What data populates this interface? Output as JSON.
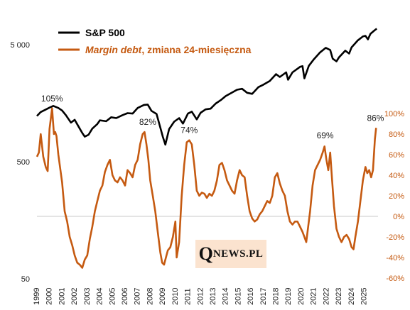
{
  "chart_data": {
    "type": "line",
    "title": "",
    "legend_placement": "top-left",
    "colors": {
      "sp500": "#000000",
      "margin": "#c55a11"
    },
    "legend": {
      "sp500": "S&P 500",
      "margin_italic": "Margin debt",
      "margin_rest": ", zmiana 24-miesięczna"
    },
    "left_axis": {
      "scale": "log",
      "ylim": [
        50,
        10000
      ],
      "tick_values": [
        50,
        500,
        5000
      ],
      "tick_labels": [
        "50",
        "500",
        "5 000"
      ]
    },
    "right_axis": {
      "scale": "linear",
      "ylim": [
        -60,
        100
      ],
      "tick_values": [
        100,
        80,
        60,
        40,
        20,
        0,
        -20,
        -40,
        -60
      ],
      "tick_labels": [
        "100%",
        "80%",
        "60%",
        "40%",
        "20%",
        "0%",
        "-20%",
        "-40%",
        "-60%"
      ]
    },
    "x_axis": {
      "xlim": [
        1999.0,
        2026.1
      ],
      "tick_labels": [
        "1999",
        "2000",
        "2001",
        "2002",
        "2003",
        "2004",
        "2005",
        "2006",
        "2007",
        "2008",
        "2009",
        "2010",
        "2011",
        "2012",
        "2013",
        "2014",
        "2015",
        "2016",
        "2017",
        "2018",
        "2019",
        "2020",
        "2021",
        "2022",
        "2023",
        "2024",
        "2025"
      ]
    },
    "annotations": [
      {
        "text": "105%",
        "x": 2000.2
      },
      {
        "text": "82%",
        "x": 2007.8
      },
      {
        "text": "74%",
        "x": 2011.1
      },
      {
        "text": "69%",
        "x": 2021.9
      },
      {
        "text": "86%",
        "x": 2025.9
      }
    ],
    "series": [
      {
        "name": "S&P 500",
        "axis": "left",
        "points": [
          [
            1999.0,
            1230
          ],
          [
            1999.3,
            1330
          ],
          [
            1999.6,
            1380
          ],
          [
            2000.0,
            1450
          ],
          [
            2000.3,
            1500
          ],
          [
            2000.7,
            1440
          ],
          [
            2001.0,
            1370
          ],
          [
            2001.3,
            1250
          ],
          [
            2001.7,
            1080
          ],
          [
            2002.0,
            1140
          ],
          [
            2002.3,
            1000
          ],
          [
            2002.6,
            880
          ],
          [
            2002.8,
            820
          ],
          [
            2003.1,
            850
          ],
          [
            2003.4,
            960
          ],
          [
            2003.8,
            1050
          ],
          [
            2004.0,
            1130
          ],
          [
            2004.5,
            1110
          ],
          [
            2004.9,
            1200
          ],
          [
            2005.3,
            1180
          ],
          [
            2005.8,
            1250
          ],
          [
            2006.2,
            1300
          ],
          [
            2006.6,
            1290
          ],
          [
            2007.0,
            1440
          ],
          [
            2007.5,
            1530
          ],
          [
            2007.8,
            1540
          ],
          [
            2008.1,
            1360
          ],
          [
            2008.5,
            1280
          ],
          [
            2008.8,
            980
          ],
          [
            2009.0,
            820
          ],
          [
            2009.2,
            700
          ],
          [
            2009.5,
            950
          ],
          [
            2009.9,
            1100
          ],
          [
            2010.3,
            1180
          ],
          [
            2010.6,
            1060
          ],
          [
            2011.0,
            1290
          ],
          [
            2011.3,
            1340
          ],
          [
            2011.7,
            1150
          ],
          [
            2012.0,
            1310
          ],
          [
            2012.4,
            1400
          ],
          [
            2012.8,
            1420
          ],
          [
            2013.2,
            1570
          ],
          [
            2013.6,
            1680
          ],
          [
            2014.0,
            1820
          ],
          [
            2014.5,
            1950
          ],
          [
            2014.9,
            2060
          ],
          [
            2015.3,
            2100
          ],
          [
            2015.7,
            1940
          ],
          [
            2016.1,
            1900
          ],
          [
            2016.6,
            2170
          ],
          [
            2017.0,
            2280
          ],
          [
            2017.5,
            2450
          ],
          [
            2018.0,
            2800
          ],
          [
            2018.3,
            2650
          ],
          [
            2018.8,
            2900
          ],
          [
            2018.95,
            2510
          ],
          [
            2019.3,
            2900
          ],
          [
            2019.9,
            3230
          ],
          [
            2020.1,
            3280
          ],
          [
            2020.25,
            2580
          ],
          [
            2020.6,
            3300
          ],
          [
            2021.0,
            3750
          ],
          [
            2021.5,
            4300
          ],
          [
            2021.95,
            4700
          ],
          [
            2022.3,
            4500
          ],
          [
            2022.5,
            3800
          ],
          [
            2022.8,
            3600
          ],
          [
            2023.0,
            3900
          ],
          [
            2023.5,
            4450
          ],
          [
            2023.8,
            4200
          ],
          [
            2024.0,
            4750
          ],
          [
            2024.5,
            5450
          ],
          [
            2024.9,
            5880
          ],
          [
            2025.1,
            5950
          ],
          [
            2025.3,
            5550
          ],
          [
            2025.5,
            6200
          ],
          [
            2025.8,
            6600
          ],
          [
            2026.0,
            6850
          ]
        ]
      },
      {
        "name": "Margin debt, zmiana 24-miesięczna",
        "axis": "right",
        "points": [
          [
            1999.0,
            58
          ],
          [
            1999.15,
            62
          ],
          [
            1999.3,
            80
          ],
          [
            1999.5,
            58
          ],
          [
            1999.7,
            48
          ],
          [
            1999.85,
            44
          ],
          [
            2000.0,
            85
          ],
          [
            2000.2,
            105
          ],
          [
            2000.35,
            80
          ],
          [
            2000.45,
            82
          ],
          [
            2000.55,
            78
          ],
          [
            2000.7,
            60
          ],
          [
            2001.0,
            33
          ],
          [
            2001.2,
            5
          ],
          [
            2001.4,
            -5
          ],
          [
            2001.6,
            -20
          ],
          [
            2001.8,
            -28
          ],
          [
            2002.0,
            -38
          ],
          [
            2002.2,
            -45
          ],
          [
            2002.4,
            -47
          ],
          [
            2002.6,
            -50
          ],
          [
            2002.8,
            -42
          ],
          [
            2003.0,
            -38
          ],
          [
            2003.2,
            -22
          ],
          [
            2003.4,
            -10
          ],
          [
            2003.6,
            5
          ],
          [
            2003.8,
            15
          ],
          [
            2004.0,
            25
          ],
          [
            2004.2,
            30
          ],
          [
            2004.4,
            43
          ],
          [
            2004.6,
            50
          ],
          [
            2004.8,
            55
          ],
          [
            2005.0,
            40
          ],
          [
            2005.2,
            35
          ],
          [
            2005.4,
            33
          ],
          [
            2005.6,
            38
          ],
          [
            2005.8,
            35
          ],
          [
            2006.0,
            30
          ],
          [
            2006.2,
            45
          ],
          [
            2006.4,
            42
          ],
          [
            2006.6,
            38
          ],
          [
            2006.8,
            50
          ],
          [
            2007.0,
            55
          ],
          [
            2007.2,
            70
          ],
          [
            2007.4,
            80
          ],
          [
            2007.55,
            82
          ],
          [
            2007.7,
            70
          ],
          [
            2007.85,
            55
          ],
          [
            2008.0,
            35
          ],
          [
            2008.2,
            20
          ],
          [
            2008.4,
            5
          ],
          [
            2008.6,
            -15
          ],
          [
            2008.8,
            -35
          ],
          [
            2008.95,
            -45
          ],
          [
            2009.1,
            -47
          ],
          [
            2009.25,
            -40
          ],
          [
            2009.4,
            -33
          ],
          [
            2009.6,
            -30
          ],
          [
            2009.8,
            -20
          ],
          [
            2010.0,
            -5
          ],
          [
            2010.1,
            -40
          ],
          [
            2010.3,
            -25
          ],
          [
            2010.5,
            20
          ],
          [
            2010.7,
            50
          ],
          [
            2010.9,
            72
          ],
          [
            2011.1,
            74
          ],
          [
            2011.3,
            70
          ],
          [
            2011.5,
            50
          ],
          [
            2011.7,
            25
          ],
          [
            2011.9,
            20
          ],
          [
            2012.1,
            23
          ],
          [
            2012.3,
            22
          ],
          [
            2012.5,
            18
          ],
          [
            2012.7,
            22
          ],
          [
            2012.9,
            20
          ],
          [
            2013.1,
            25
          ],
          [
            2013.3,
            35
          ],
          [
            2013.5,
            50
          ],
          [
            2013.7,
            52
          ],
          [
            2013.9,
            45
          ],
          [
            2014.1,
            35
          ],
          [
            2014.3,
            30
          ],
          [
            2014.5,
            25
          ],
          [
            2014.7,
            22
          ],
          [
            2014.9,
            35
          ],
          [
            2015.1,
            45
          ],
          [
            2015.3,
            40
          ],
          [
            2015.5,
            38
          ],
          [
            2015.7,
            20
          ],
          [
            2015.9,
            5
          ],
          [
            2016.1,
            -2
          ],
          [
            2016.3,
            -5
          ],
          [
            2016.5,
            -3
          ],
          [
            2016.7,
            2
          ],
          [
            2016.9,
            5
          ],
          [
            2017.1,
            10
          ],
          [
            2017.3,
            15
          ],
          [
            2017.5,
            13
          ],
          [
            2017.7,
            20
          ],
          [
            2017.9,
            38
          ],
          [
            2018.1,
            42
          ],
          [
            2018.3,
            32
          ],
          [
            2018.5,
            25
          ],
          [
            2018.7,
            20
          ],
          [
            2018.9,
            5
          ],
          [
            2019.1,
            -5
          ],
          [
            2019.3,
            -8
          ],
          [
            2019.5,
            -5
          ],
          [
            2019.7,
            -5
          ],
          [
            2019.9,
            -10
          ],
          [
            2020.1,
            -15
          ],
          [
            2020.25,
            -20
          ],
          [
            2020.4,
            -25
          ],
          [
            2020.55,
            -10
          ],
          [
            2020.7,
            5
          ],
          [
            2020.9,
            30
          ],
          [
            2021.1,
            45
          ],
          [
            2021.3,
            50
          ],
          [
            2021.5,
            55
          ],
          [
            2021.7,
            62
          ],
          [
            2021.85,
            68
          ],
          [
            2022.0,
            55
          ],
          [
            2022.15,
            45
          ],
          [
            2022.3,
            62
          ],
          [
            2022.45,
            35
          ],
          [
            2022.6,
            10
          ],
          [
            2022.8,
            -12
          ],
          [
            2023.0,
            -20
          ],
          [
            2023.2,
            -25
          ],
          [
            2023.4,
            -20
          ],
          [
            2023.6,
            -18
          ],
          [
            2023.8,
            -22
          ],
          [
            2024.0,
            -30
          ],
          [
            2024.15,
            -32
          ],
          [
            2024.3,
            -20
          ],
          [
            2024.5,
            -5
          ],
          [
            2024.7,
            15
          ],
          [
            2024.9,
            35
          ],
          [
            2025.1,
            48
          ],
          [
            2025.25,
            42
          ],
          [
            2025.4,
            45
          ],
          [
            2025.55,
            38
          ],
          [
            2025.7,
            45
          ],
          [
            2025.85,
            75
          ],
          [
            2025.95,
            86
          ]
        ]
      }
    ]
  },
  "watermark": {
    "q": "Q",
    "rest": "NEWS.PL"
  }
}
